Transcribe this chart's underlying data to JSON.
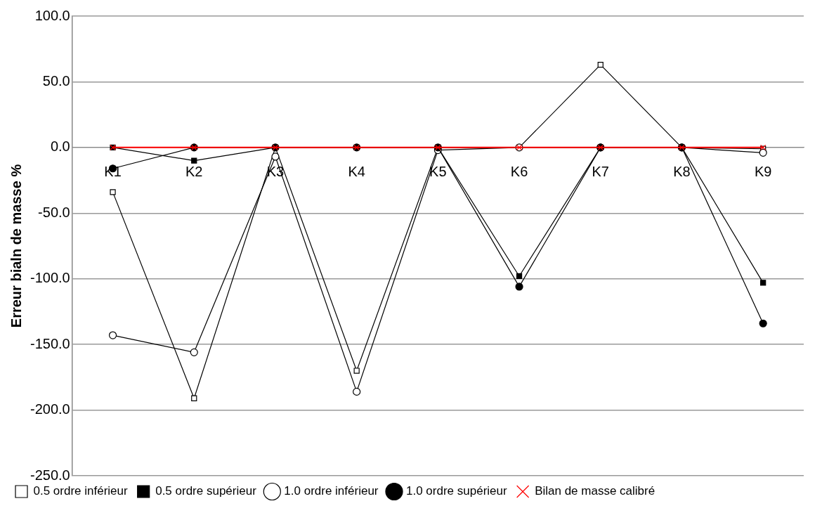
{
  "chart_data": {
    "type": "line",
    "ylabel": "Erreur bialn de masse %",
    "categories": [
      "K1",
      "K2",
      "K3",
      "K4",
      "K5",
      "K6",
      "K7",
      "K8",
      "K9"
    ],
    "series": [
      {
        "name": "0.5 ordre inférieur",
        "color": "#000000",
        "marker": "square",
        "values": [
          -34,
          -191,
          0,
          -170,
          0,
          0,
          63,
          0,
          -1
        ]
      },
      {
        "name": "0.5 ordre supérieur",
        "color": "#000000",
        "marker": "square",
        "values": [
          0,
          -10,
          0,
          0,
          0,
          -98,
          0,
          0,
          -103
        ]
      },
      {
        "name": "1.0 ordre inférieur",
        "color": "#000000",
        "marker": "circle",
        "values": [
          -143,
          -156,
          -7,
          -186,
          -2,
          0,
          0,
          0,
          -4
        ]
      },
      {
        "name": "1.0 ordre supérieur",
        "color": "#000000",
        "marker": "circle",
        "values": [
          -16,
          0,
          0,
          0,
          0,
          -106,
          0,
          0,
          -134
        ]
      },
      {
        "name": "Bilan de masse calibré",
        "color": "#ff0000",
        "marker": "cross",
        "values": [
          0,
          0,
          0,
          0,
          0,
          0,
          0,
          0,
          0
        ]
      }
    ],
    "ylim": [
      -250,
      100
    ],
    "yticks": [
      {
        "value": 100,
        "label": "100.0"
      },
      {
        "value": 50,
        "label": "50.0"
      },
      {
        "value": 0,
        "label": "0.0"
      },
      {
        "value": -50,
        "label": "-50.0"
      },
      {
        "value": -100,
        "label": "-100.0"
      },
      {
        "value": -150,
        "label": "-150.0"
      },
      {
        "value": -200,
        "label": "-200.0"
      },
      {
        "value": -250,
        "label": "-250.0"
      }
    ],
    "grid": "y",
    "legend": "bottom"
  }
}
